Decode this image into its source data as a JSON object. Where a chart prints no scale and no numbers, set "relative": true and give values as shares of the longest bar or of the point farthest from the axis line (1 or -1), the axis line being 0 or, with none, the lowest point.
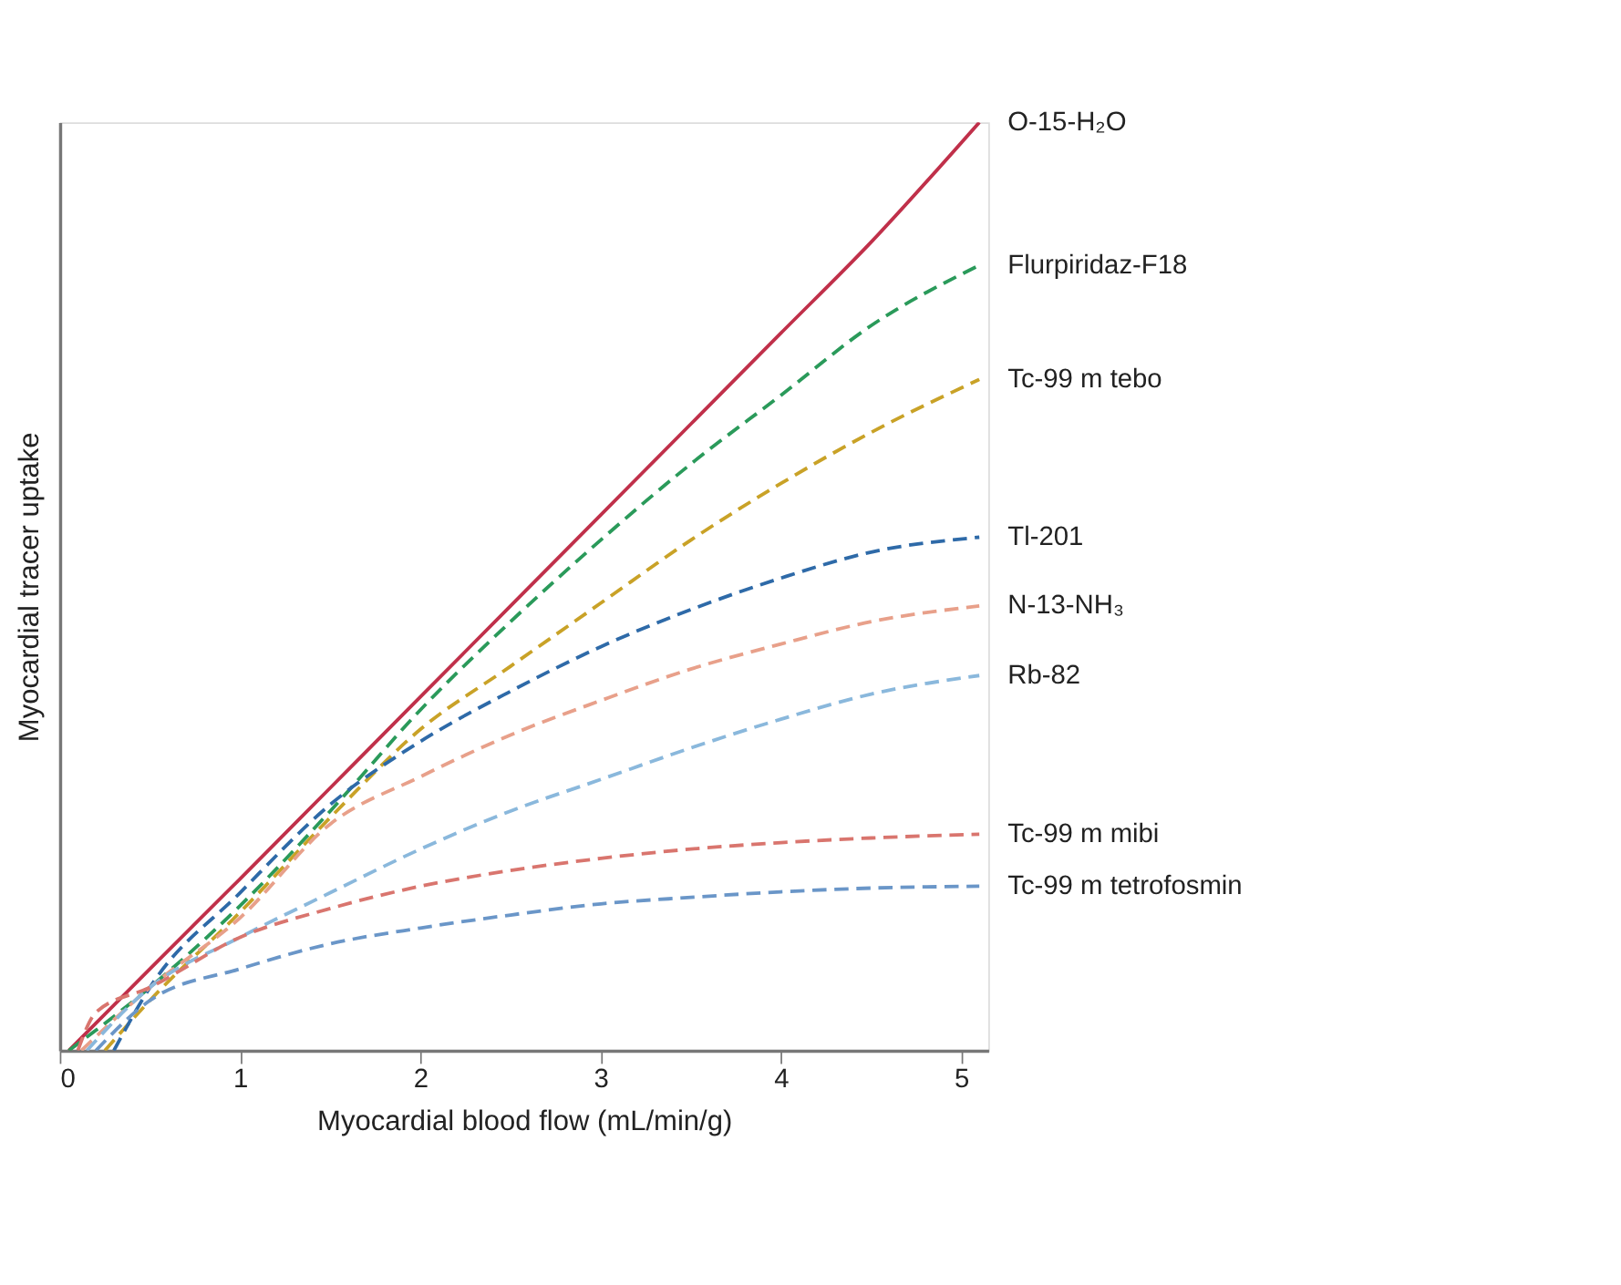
{
  "chart_data": {
    "type": "line",
    "relative": true,
    "xlabel": "Myocardial blood flow (mL/min/g)",
    "ylabel": "Myocardial tracer uptake",
    "xlim": [
      0,
      5.15
    ],
    "xticks": [
      0,
      1,
      2,
      3,
      4,
      5
    ],
    "grid": false,
    "legend": false,
    "marker": "none",
    "x": [
      0.05,
      0.5,
      1,
      1.5,
      2,
      2.5,
      3,
      3.5,
      4,
      4.5,
      5.1
    ],
    "series": [
      {
        "name": "O-15-H₂O",
        "color": "#c0304a",
        "line_style": "solid",
        "values": [
          0,
          0.088,
          0.185,
          0.283,
          0.381,
          0.479,
          0.577,
          0.675,
          0.773,
          0.871,
          1
        ]
      },
      {
        "name": "Flurpiridaz-F18",
        "color": "#2a9a5a",
        "line_style": "dashed",
        "values": [
          0,
          0.068,
          0.156,
          0.258,
          0.367,
          0.462,
          0.55,
          0.632,
          0.706,
          0.781,
          0.846
        ]
      },
      {
        "name": "Tc-99 m tebo",
        "color": "#c9a227",
        "line_style": "dashed",
        "x": [
          0.25,
          0.5,
          1,
          1.5,
          2,
          2.5,
          3,
          3.5,
          4,
          4.5,
          5.1
        ],
        "values": [
          0,
          0.054,
          0.149,
          0.251,
          0.346,
          0.414,
          0.482,
          0.55,
          0.611,
          0.666,
          0.723
        ]
      },
      {
        "name": "Tl-201",
        "color": "#2e6aa8",
        "line_style": "dashed",
        "x": [
          0.3,
          0.5,
          1,
          1.5,
          2,
          2.5,
          3,
          3.5,
          4,
          4.5,
          5.1
        ],
        "values": [
          0,
          0.068,
          0.17,
          0.265,
          0.333,
          0.387,
          0.435,
          0.475,
          0.509,
          0.537,
          0.553
        ]
      },
      {
        "name": "N-13-NH₃",
        "color": "#e8a08a",
        "line_style": "dashed",
        "x": [
          0.12,
          0.5,
          1,
          1.5,
          2,
          2.5,
          3,
          3.5,
          4,
          4.5,
          5.1
        ],
        "values": [
          0,
          0.068,
          0.143,
          0.244,
          0.295,
          0.34,
          0.377,
          0.411,
          0.438,
          0.462,
          0.479
        ]
      },
      {
        "name": "Rb-82",
        "color": "#8ab8dc",
        "line_style": "dashed",
        "x": [
          0.15,
          0.5,
          1,
          1.5,
          2,
          2.5,
          3,
          3.5,
          4,
          4.5,
          5.1
        ],
        "values": [
          0,
          0.068,
          0.122,
          0.17,
          0.217,
          0.258,
          0.292,
          0.326,
          0.357,
          0.384,
          0.404
        ]
      },
      {
        "name": "Tc-99 m mibi",
        "color": "#d9756e",
        "line_style": "dashed",
        "x": [
          0.1,
          0.2,
          0.5,
          1,
          1.5,
          2,
          2.5,
          3,
          3.5,
          4,
          4.5,
          5.1
        ],
        "values": [
          0,
          0.041,
          0.068,
          0.122,
          0.153,
          0.177,
          0.194,
          0.207,
          0.217,
          0.224,
          0.229,
          0.233
        ]
      },
      {
        "name": "Tc-99 m tetrofosmin",
        "color": "#6a96c8",
        "line_style": "dashed",
        "x": [
          0.2,
          0.5,
          1,
          1.5,
          2,
          2.5,
          3,
          3.5,
          4,
          4.5,
          5.1
        ],
        "values": [
          0,
          0.054,
          0.088,
          0.115,
          0.132,
          0.146,
          0.158,
          0.165,
          0.171,
          0.175,
          0.177
        ]
      }
    ]
  }
}
